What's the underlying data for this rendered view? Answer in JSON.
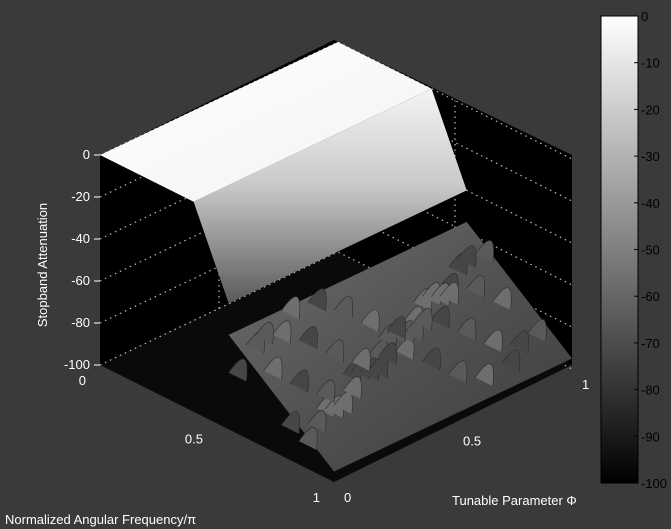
{
  "chart_data": {
    "type": "surface",
    "zlabel": "Stopband Attenuation",
    "xlabel": "Normalized Angular Frequency/π",
    "ylabel": "Tunable Parameter Φ",
    "zlim": [
      -100,
      0
    ],
    "xlim": [
      0,
      1
    ],
    "ylim": [
      0,
      1
    ],
    "z_ticks": [
      "0",
      "-20",
      "-40",
      "-60",
      "-80",
      "-100"
    ],
    "x_ticks": [
      "0",
      "0.5",
      "1"
    ],
    "y_ticks": [
      "0",
      "0.5",
      "1"
    ],
    "colormap": "gray",
    "grid": true,
    "colorbar": {
      "range": [
        -100,
        0
      ],
      "ticks": [
        "0",
        "-10",
        "-20",
        "-30",
        "-40",
        "-50",
        "-60",
        "-70",
        "-80",
        "-90",
        "-100"
      ]
    },
    "passband_level": 0,
    "transition_frequency_range": [
      0.4,
      0.55
    ],
    "stopband_typical_range": [
      -95,
      -55
    ],
    "background_color": "#3a3a3a",
    "axes_color": "#000000",
    "tick_color": "#ffffff"
  }
}
